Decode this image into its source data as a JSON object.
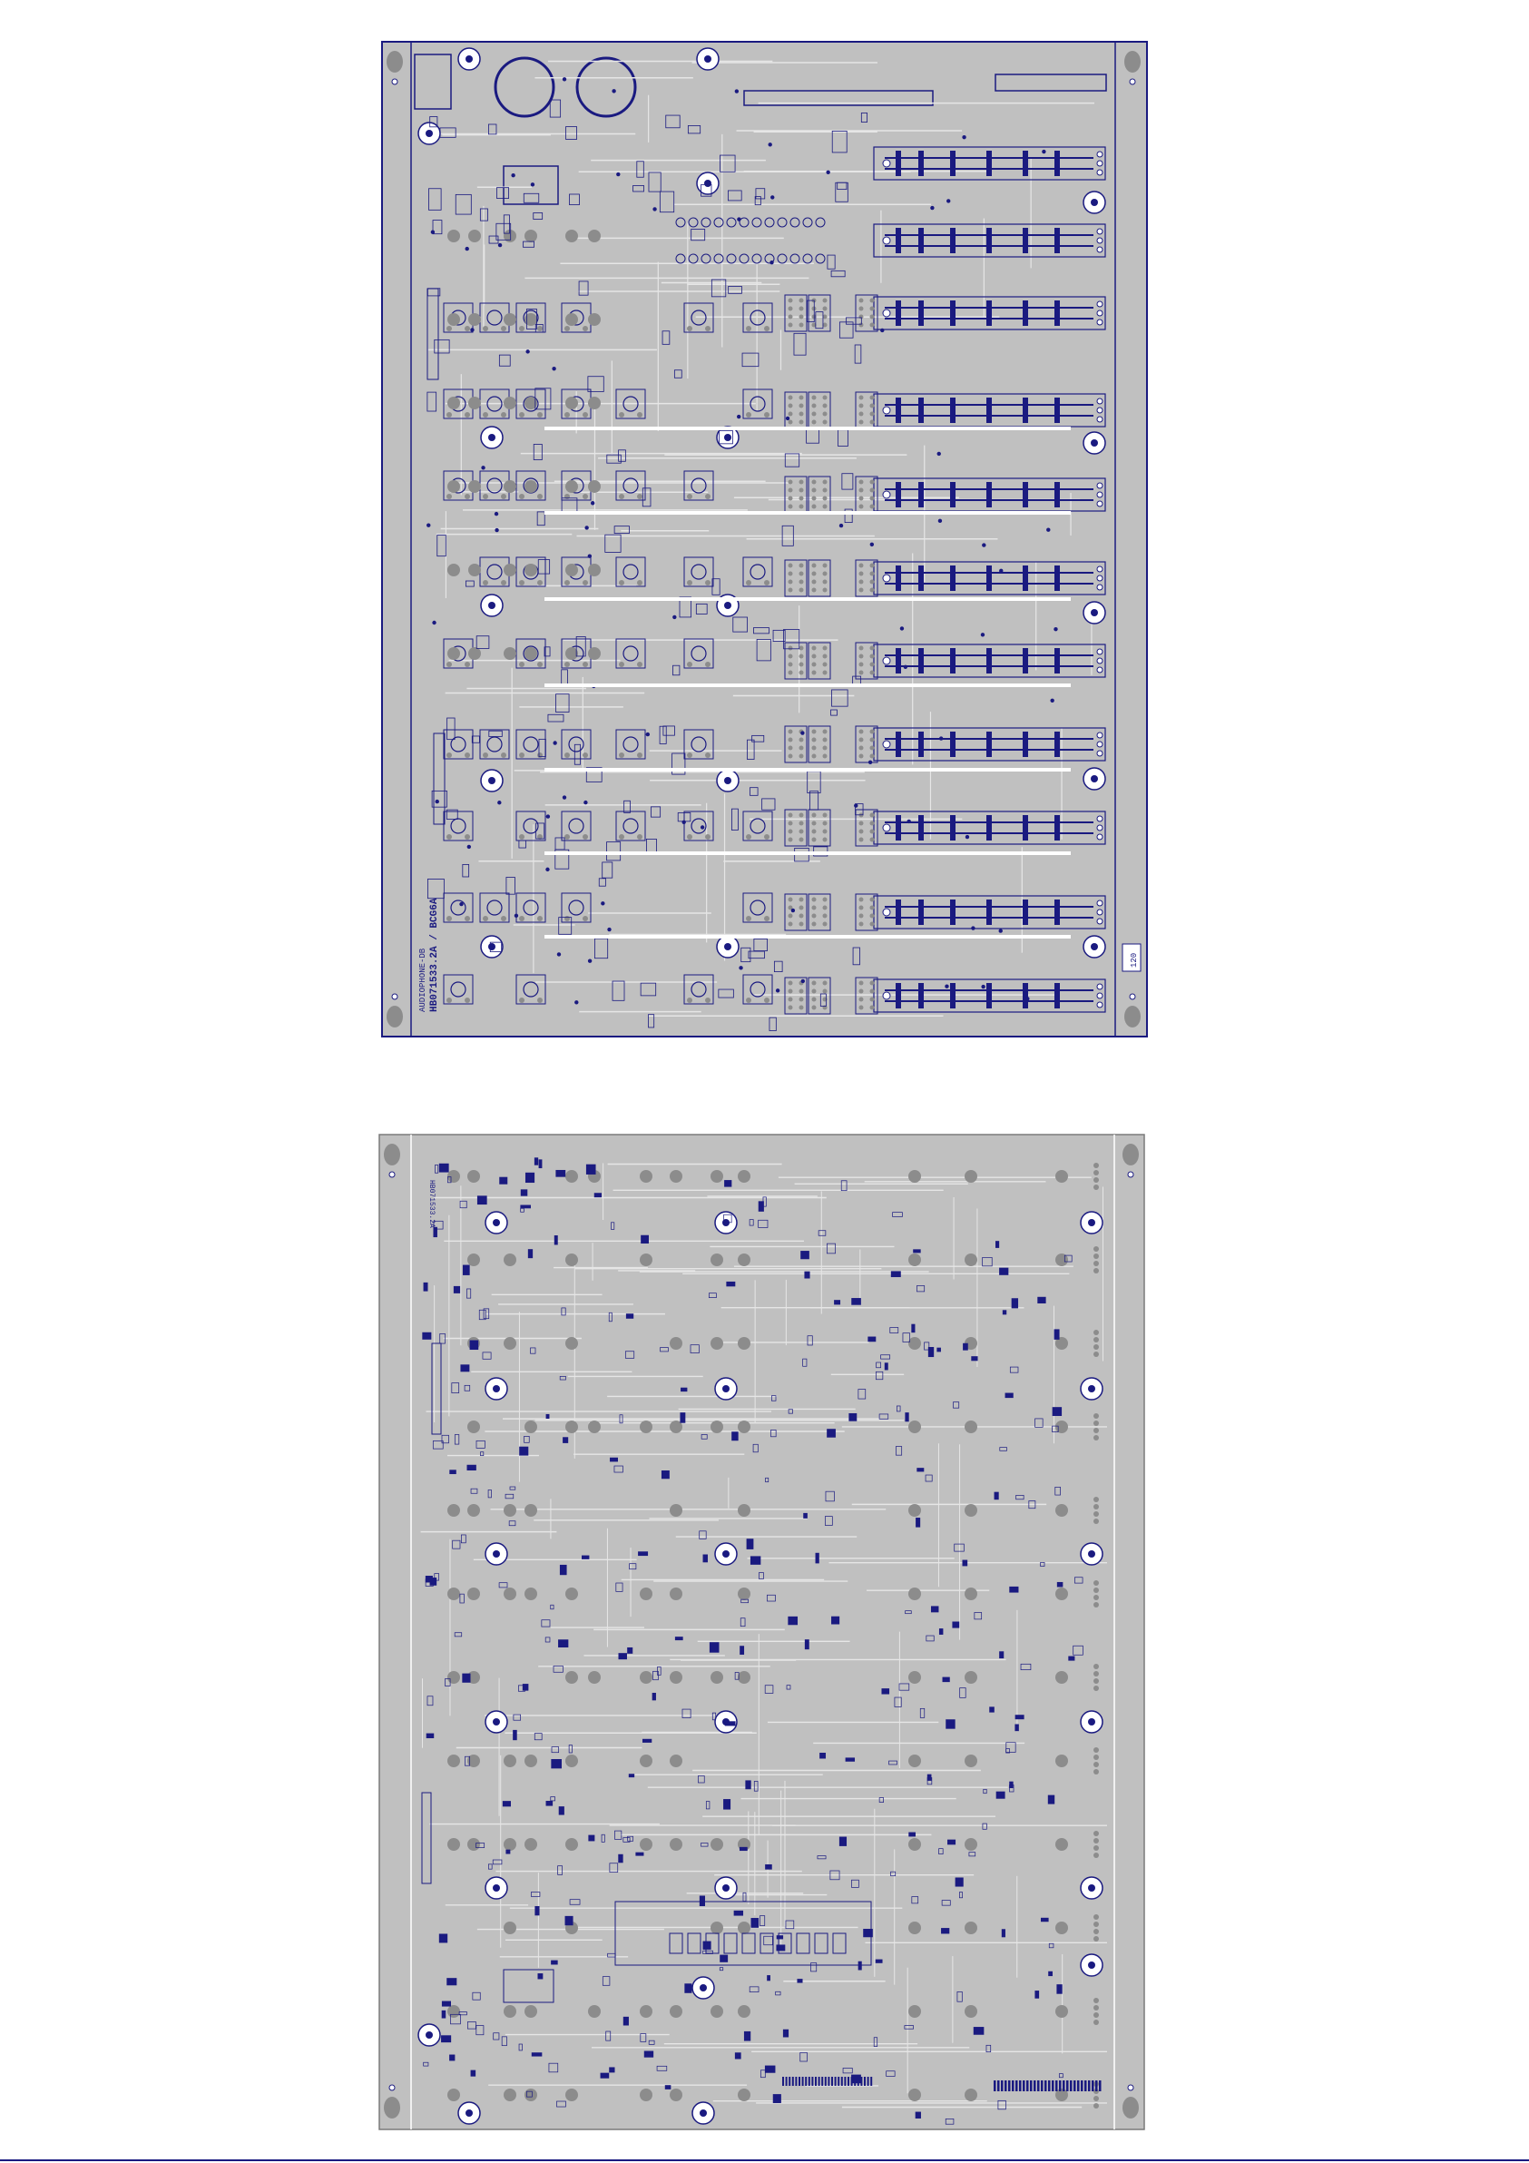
{
  "pcb": {
    "top_layer": {
      "board_code": "HB071533.2A / BCG6A",
      "board_title": "AUDIOPHONE-DB",
      "edge_marker": "120"
    },
    "bottom_layer": {
      "board_code": "HB071533.2A"
    }
  },
  "colors": {
    "substrate": "#c0c0c0",
    "copper_outline": "#1a1a80",
    "pad_fill": "#8c8c8c",
    "trace_light": "#e6e6e6",
    "background": "#ffffff"
  }
}
